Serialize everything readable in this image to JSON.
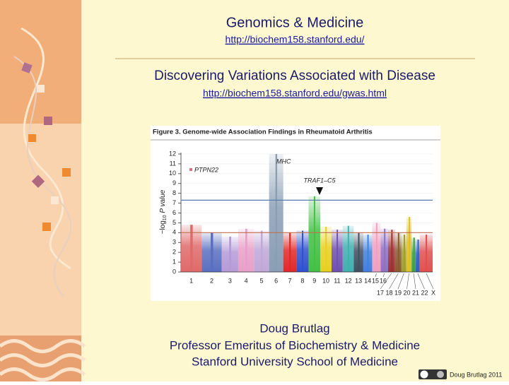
{
  "header": {
    "title": "Genomics & Medicine",
    "url": "http://biochem158.stanford.edu/"
  },
  "section": {
    "title": "Discovering Variations Associated with Disease",
    "url": "http://biochem158.stanford.edu/gwas.html"
  },
  "chart_data": {
    "type": "manhattan",
    "title": "Figure 3. Genome-wide Association Findings in Rheumatoid Arthritis",
    "y_label": {
      "text": "−log",
      "sub": "10",
      "rest": " P value"
    },
    "categories": [
      "1",
      "2",
      "3",
      "4",
      "5",
      "6",
      "7",
      "8",
      "9",
      "10",
      "11",
      "12",
      "13",
      "14",
      "15",
      "16",
      "17",
      "18",
      "19",
      "20",
      "21",
      "22",
      "X"
    ],
    "values": [
      4.8,
      4.0,
      3.6,
      4.4,
      4.2,
      12,
      4.0,
      4.2,
      7.7,
      4.6,
      4.3,
      4.7,
      4.0,
      3.8,
      5.0,
      4.4,
      4.3,
      4.0,
      3.8,
      5.6,
      3.5,
      3.3,
      3.8
    ],
    "colors": [
      "#e06a6a",
      "#5a6fc0",
      "#b59ad8",
      "#e8a0c8",
      "#c0a8d8",
      "#8a9fb5",
      "#e02828",
      "#3050d0",
      "#44c044",
      "#e8d020",
      "#7050b0",
      "#40b0b0",
      "#405060",
      "#4080e0",
      "#f0a0c0",
      "#9070c0",
      "#a03030",
      "#8a5a30",
      "#a0a030",
      "#e0c020",
      "#40a040",
      "#3060c0",
      "#e05050"
    ],
    "ylim": [
      0,
      12
    ],
    "yticks": [
      0,
      1,
      2,
      3,
      4,
      5,
      6,
      7,
      8,
      9,
      10,
      11,
      12
    ],
    "thresholds": [
      {
        "value": 7.3,
        "color": "#5a7db0"
      },
      {
        "value": 4,
        "color": "#c07050"
      }
    ],
    "annotations": [
      "PTPN22",
      "MHC",
      "TRAF1–C5"
    ]
  },
  "footer": {
    "name": "Doug Brutlag",
    "position": "Professor Emeritus of Biochemistry & Medicine",
    "school": "Stanford University School of Medicine"
  },
  "credit": "Doug Brutlag 2011"
}
